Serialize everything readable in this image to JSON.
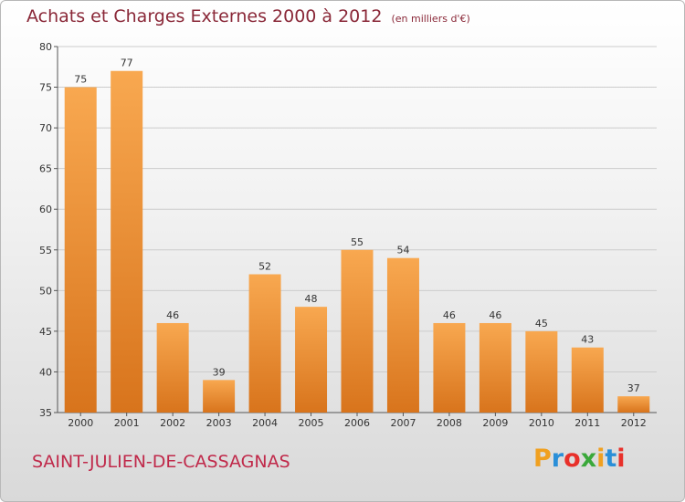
{
  "title": "Achats et Charges Externes 2000 à 2012",
  "unit": "(en milliers d'€)",
  "place": "SAINT-JULIEN-DE-CASSAGNAS",
  "logo": {
    "letters": [
      "P",
      "r",
      "o",
      "x",
      "i",
      "t",
      "i"
    ],
    "colors": [
      "#f0a020",
      "#2a8fd8",
      "#e8302a",
      "#3aa83a",
      "#f0a020",
      "#2a8fd8",
      "#e8302a"
    ]
  },
  "colors": {
    "bar_top": "#f8a850",
    "bar_bottom": "#d8741c",
    "grid": "#cccccc",
    "title": "#8a2838",
    "place": "#c0294a"
  },
  "chart_data": {
    "type": "bar",
    "categories": [
      "2000",
      "2001",
      "2002",
      "2003",
      "2004",
      "2005",
      "2006",
      "2007",
      "2008",
      "2009",
      "2010",
      "2011",
      "2012"
    ],
    "values": [
      75,
      77,
      46,
      39,
      52,
      48,
      55,
      54,
      46,
      46,
      45,
      43,
      37
    ],
    "title": "Achats et Charges Externes 2000 à 2012",
    "xlabel": "",
    "ylabel": "",
    "ylim": [
      35,
      80
    ],
    "yticks": [
      35,
      40,
      45,
      50,
      55,
      60,
      65,
      70,
      75,
      80
    ],
    "grid": true
  }
}
